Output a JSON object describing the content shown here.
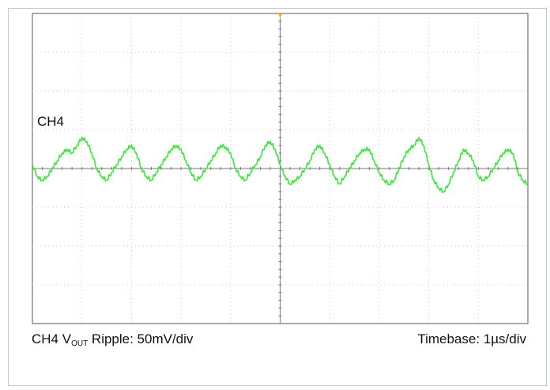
{
  "chart_data": {
    "type": "line",
    "channel_tag": "CH4",
    "caption_left": {
      "prefix": "CH4 V",
      "subscript": "OUT",
      "suffix": " Ripple: 50mV/div"
    },
    "caption_right": "Timebase: 1µs/div",
    "grid": true,
    "divisions": {
      "x": 10,
      "y": 8
    },
    "ylim": [
      -200,
      200
    ],
    "xlim": [
      0,
      10
    ],
    "x_unit": "µs",
    "y_unit": "mV",
    "trigger_marker_color": "#f5a623",
    "trace_color": "#39e639",
    "grid_color": "#c9c9c9",
    "series": [
      {
        "x": [
          0.0,
          0.1,
          0.2,
          0.3,
          0.4,
          0.5,
          0.6,
          0.7,
          0.8,
          0.9,
          1.0,
          1.1,
          1.2,
          1.3,
          1.4,
          1.5,
          1.6,
          1.7,
          1.8,
          1.9,
          2.0,
          2.1,
          2.2,
          2.3,
          2.4,
          2.5,
          2.6,
          2.7,
          2.8,
          2.9,
          3.0,
          3.1,
          3.2,
          3.3,
          3.4,
          3.5,
          3.6,
          3.7,
          3.8,
          3.9,
          4.0,
          4.1,
          4.2,
          4.3,
          4.4,
          4.5,
          4.6,
          4.7,
          4.8,
          4.9,
          5.0,
          5.1,
          5.2,
          5.3,
          5.4,
          5.5,
          5.6,
          5.7,
          5.8,
          5.9,
          6.0,
          6.1,
          6.2,
          6.3,
          6.4,
          6.5,
          6.6,
          6.7,
          6.8,
          6.9,
          7.0,
          7.1,
          7.2,
          7.3,
          7.4,
          7.5,
          7.6,
          7.7,
          7.8,
          7.9,
          8.0,
          8.1,
          8.2,
          8.3,
          8.4,
          8.5,
          8.6,
          8.7,
          8.8,
          8.9,
          9.0,
          9.1,
          9.2,
          9.3,
          9.4,
          9.5,
          9.6,
          9.7,
          9.8,
          9.9,
          10.0
        ],
        "values": [
          5,
          -10,
          -15,
          -10,
          0,
          10,
          20,
          25,
          20,
          30,
          40,
          35,
          20,
          0,
          -10,
          -15,
          -5,
          5,
          15,
          25,
          30,
          20,
          0,
          -10,
          -15,
          -5,
          5,
          15,
          25,
          30,
          25,
          10,
          -5,
          -15,
          -10,
          0,
          10,
          20,
          30,
          28,
          20,
          0,
          -10,
          -15,
          -5,
          5,
          15,
          30,
          35,
          25,
          5,
          -10,
          -20,
          -15,
          -10,
          0,
          10,
          25,
          30,
          20,
          5,
          -10,
          -20,
          -10,
          0,
          10,
          20,
          25,
          25,
          10,
          -5,
          -15,
          -20,
          -15,
          0,
          15,
          25,
          30,
          40,
          30,
          5,
          -15,
          -25,
          -30,
          -20,
          -5,
          10,
          25,
          20,
          10,
          -10,
          -15,
          -10,
          0,
          10,
          20,
          25,
          20,
          -5,
          -15,
          -20
        ]
      }
    ]
  }
}
